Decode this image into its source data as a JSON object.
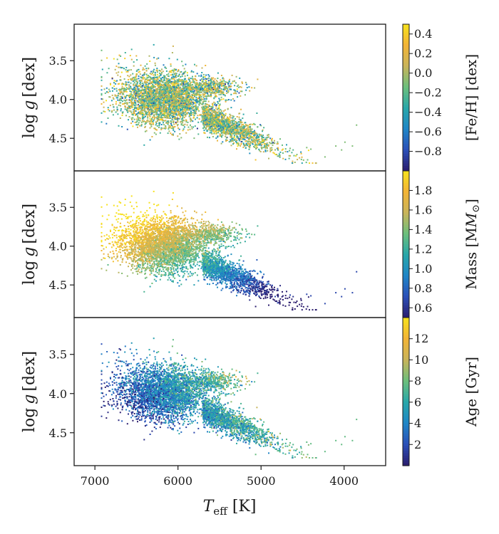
{
  "chart_data": {
    "type": "scatter",
    "x_axis": {
      "label_main": "T",
      "label_sub": "eff",
      "label_unit": "[K]",
      "lim": [
        7250,
        3500
      ],
      "ticks": [
        7000,
        6000,
        5000,
        4000
      ],
      "tick_labels": [
        "7000",
        "6000",
        "5000",
        "4000"
      ]
    },
    "panels": [
      {
        "name": "metallicity",
        "ylabel_main": "log",
        "ylabel_var": "g",
        "ylabel_unit": "[dex]",
        "ylim": [
          4.92,
          3.03
        ],
        "yticks": [
          3.5,
          4.0,
          4.5
        ],
        "ytick_labels": [
          "3.5",
          "4.0",
          "4.5"
        ],
        "colorbar": {
          "label": "[Fe/H] [dex]",
          "range": [
            -1.0,
            0.5
          ],
          "ticks": [
            0.4,
            0.2,
            0.0,
            -0.2,
            -0.4,
            -0.6,
            -0.8
          ],
          "tick_labels": [
            "0.4",
            "0.2",
            "0.0",
            "−0.2",
            "−0.4",
            "−0.6",
            "−0.8"
          ]
        }
      },
      {
        "name": "mass",
        "ylabel_main": "log",
        "ylabel_var": "g",
        "ylabel_unit": "[dex]",
        "ylim": [
          4.92,
          3.03
        ],
        "yticks": [
          3.5,
          4.0,
          4.5
        ],
        "ytick_labels": [
          "3.5",
          "4.0",
          "4.5"
        ],
        "colorbar": {
          "label": "Mass [M",
          "label_tail": "]",
          "range": [
            0.5,
            2.0
          ],
          "ticks": [
            1.8,
            1.6,
            1.4,
            1.2,
            1.0,
            0.8,
            0.6
          ],
          "tick_labels": [
            "1.8",
            "1.6",
            "1.4",
            "1.2",
            "1.0",
            "0.8",
            "0.6"
          ]
        }
      },
      {
        "name": "age",
        "ylabel_main": "log",
        "ylabel_var": "g",
        "ylabel_unit": "[dex]",
        "ylim": [
          4.92,
          3.03
        ],
        "yticks": [
          3.5,
          4.0,
          4.5
        ],
        "ytick_labels": [
          "3.5",
          "4.0",
          "4.5"
        ],
        "colorbar": {
          "label": "Age [Gyr]",
          "range": [
            0,
            14
          ],
          "ticks": [
            12,
            10,
            8,
            6,
            4,
            2
          ],
          "tick_labels": [
            "12",
            "10",
            "8",
            "6",
            "4",
            "2"
          ]
        }
      }
    ],
    "colormap": [
      "#2b1d6e",
      "#2b4fb8",
      "#1f86c7",
      "#28a7a9",
      "#6cbf7c",
      "#c9b45a",
      "#f2b436",
      "#f7e21d"
    ],
    "grid": false,
    "legend": "none"
  }
}
